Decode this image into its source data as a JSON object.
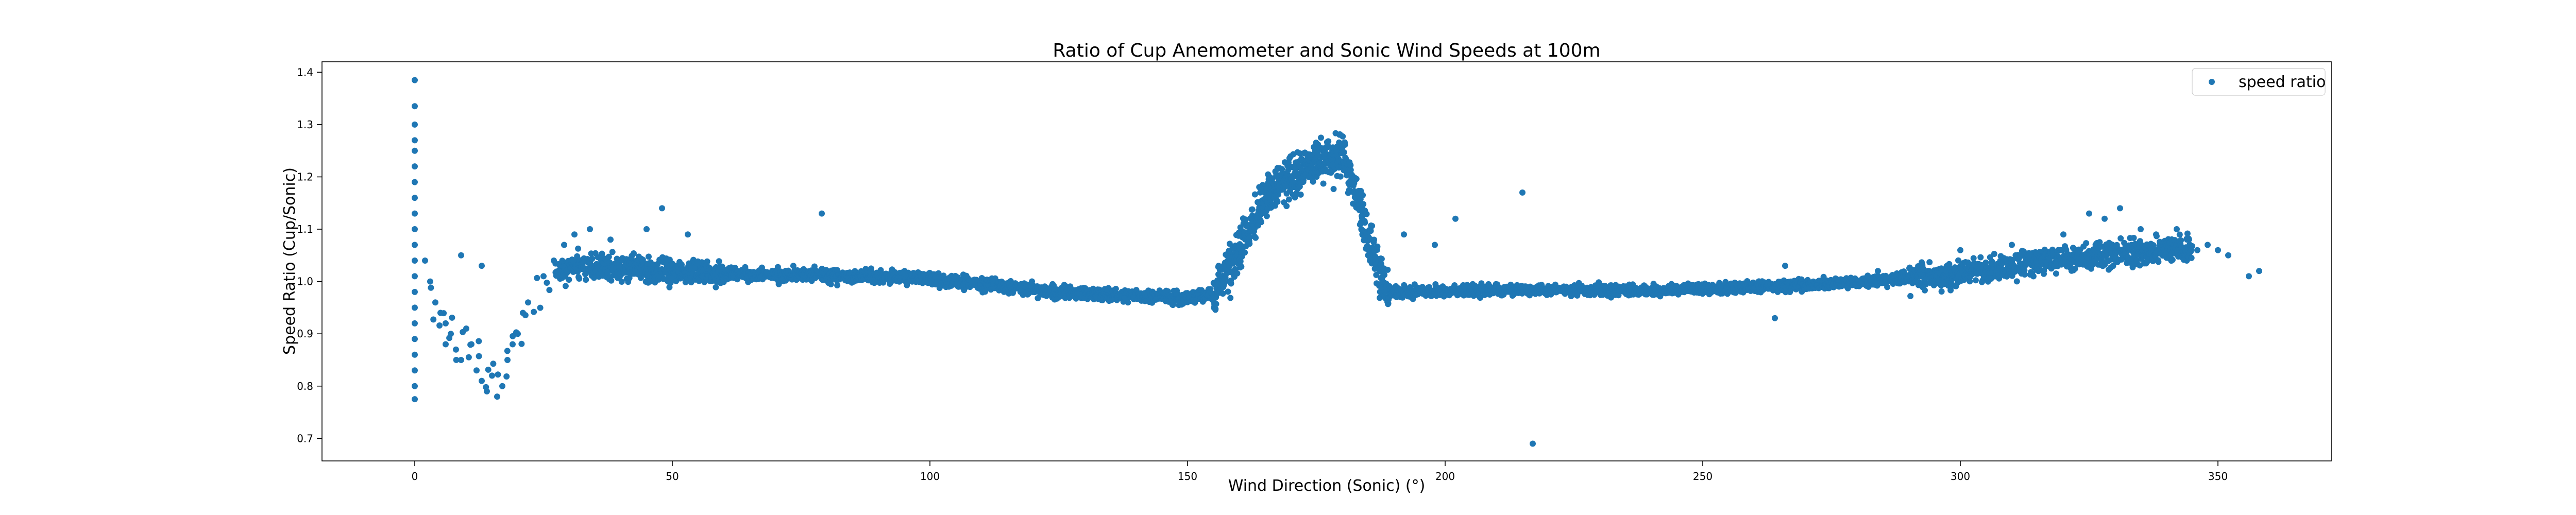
{
  "chart_data": {
    "type": "scatter",
    "title": "Ratio of Cup Anemometer and Sonic Wind Speeds at 100m",
    "xlabel": "Wind Direction (Sonic) (°)",
    "ylabel": "Speed Ratio (Cup/Sonic)",
    "xlim": [
      -18,
      372
    ],
    "ylim": [
      0.657,
      1.42
    ],
    "xticks": [
      0,
      50,
      100,
      150,
      200,
      250,
      300,
      350
    ],
    "yticks": [
      0.7,
      0.8,
      0.9,
      1.0,
      1.1,
      1.2,
      1.3,
      1.4
    ],
    "grid": false,
    "legend": {
      "position": "top-right",
      "entries": [
        "speed ratio"
      ]
    },
    "series": [
      {
        "name": "speed ratio",
        "color": "#1f77b4",
        "trend": [
          [
            0,
            1.0
          ],
          [
            5,
            0.93
          ],
          [
            10,
            0.86
          ],
          [
            15,
            0.82
          ],
          [
            18,
            0.84
          ],
          [
            22,
            0.93
          ],
          [
            26,
            1.0
          ],
          [
            30,
            1.03
          ],
          [
            40,
            1.025
          ],
          [
            60,
            1.015
          ],
          [
            80,
            1.012
          ],
          [
            100,
            1.005
          ],
          [
            115,
            0.99
          ],
          [
            125,
            0.98
          ],
          [
            140,
            0.972
          ],
          [
            150,
            0.968
          ],
          [
            155,
            0.975
          ],
          [
            160,
            1.06
          ],
          [
            165,
            1.16
          ],
          [
            170,
            1.2
          ],
          [
            175,
            1.23
          ],
          [
            180,
            1.24
          ],
          [
            183,
            1.16
          ],
          [
            186,
            1.05
          ],
          [
            189,
            0.98
          ],
          [
            200,
            0.982
          ],
          [
            220,
            0.985
          ],
          [
            240,
            0.982
          ],
          [
            260,
            0.99
          ],
          [
            280,
            0.998
          ],
          [
            300,
            1.015
          ],
          [
            320,
            1.045
          ],
          [
            340,
            1.06
          ],
          [
            350,
            1.065
          ]
        ],
        "points": [
          [
            0,
            1.385
          ],
          [
            0,
            1.335
          ],
          [
            0,
            1.3
          ],
          [
            0,
            1.27
          ],
          [
            0,
            1.25
          ],
          [
            0,
            1.22
          ],
          [
            0,
            1.19
          ],
          [
            0,
            1.16
          ],
          [
            0,
            1.13
          ],
          [
            0,
            1.1
          ],
          [
            0,
            1.07
          ],
          [
            0,
            1.04
          ],
          [
            0,
            1.01
          ],
          [
            0,
            0.98
          ],
          [
            0,
            0.95
          ],
          [
            0,
            0.92
          ],
          [
            0,
            0.89
          ],
          [
            0,
            0.86
          ],
          [
            0,
            0.83
          ],
          [
            0,
            0.8
          ],
          [
            0,
            0.775
          ],
          [
            2,
            1.04
          ],
          [
            3,
            1.0
          ],
          [
            4,
            0.96
          ],
          [
            5,
            0.94
          ],
          [
            6,
            0.92
          ],
          [
            6,
            0.88
          ],
          [
            7,
            0.9
          ],
          [
            8,
            0.87
          ],
          [
            9,
            0.85
          ],
          [
            9,
            1.05
          ],
          [
            10,
            0.91
          ],
          [
            11,
            0.88
          ],
          [
            12,
            0.83
          ],
          [
            13,
            0.81
          ],
          [
            14,
            0.79
          ],
          [
            15,
            0.82
          ],
          [
            16,
            0.78
          ],
          [
            17,
            0.8
          ],
          [
            18,
            0.85
          ],
          [
            19,
            0.88
          ],
          [
            20,
            0.9
          ],
          [
            21,
            0.94
          ],
          [
            22,
            0.96
          ],
          [
            13,
            1.03
          ],
          [
            25,
            1.01
          ],
          [
            27,
            1.04
          ],
          [
            29,
            1.07
          ],
          [
            31,
            1.09
          ],
          [
            34,
            1.1
          ],
          [
            38,
            1.08
          ],
          [
            45,
            1.1
          ],
          [
            48,
            1.14
          ],
          [
            53,
            1.09
          ],
          [
            79,
            1.13
          ],
          [
            108,
            1.0
          ],
          [
            157,
            1.03
          ],
          [
            192,
            1.09
          ],
          [
            198,
            1.07
          ],
          [
            202,
            1.12
          ],
          [
            212,
            0.99
          ],
          [
            215,
            1.17
          ],
          [
            217,
            0.69
          ],
          [
            264,
            0.93
          ],
          [
            266,
            1.03
          ],
          [
            284,
            1.02
          ],
          [
            300,
            1.06
          ],
          [
            310,
            1.07
          ],
          [
            320,
            1.09
          ],
          [
            325,
            1.13
          ],
          [
            328,
            1.12
          ],
          [
            331,
            1.14
          ],
          [
            335,
            1.1
          ],
          [
            338,
            1.09
          ],
          [
            342,
            1.1
          ],
          [
            344,
            1.08
          ],
          [
            346,
            1.06
          ],
          [
            348,
            1.07
          ],
          [
            350,
            1.06
          ],
          [
            352,
            1.05
          ],
          [
            356,
            1.01
          ],
          [
            358,
            1.02
          ]
        ]
      }
    ]
  }
}
